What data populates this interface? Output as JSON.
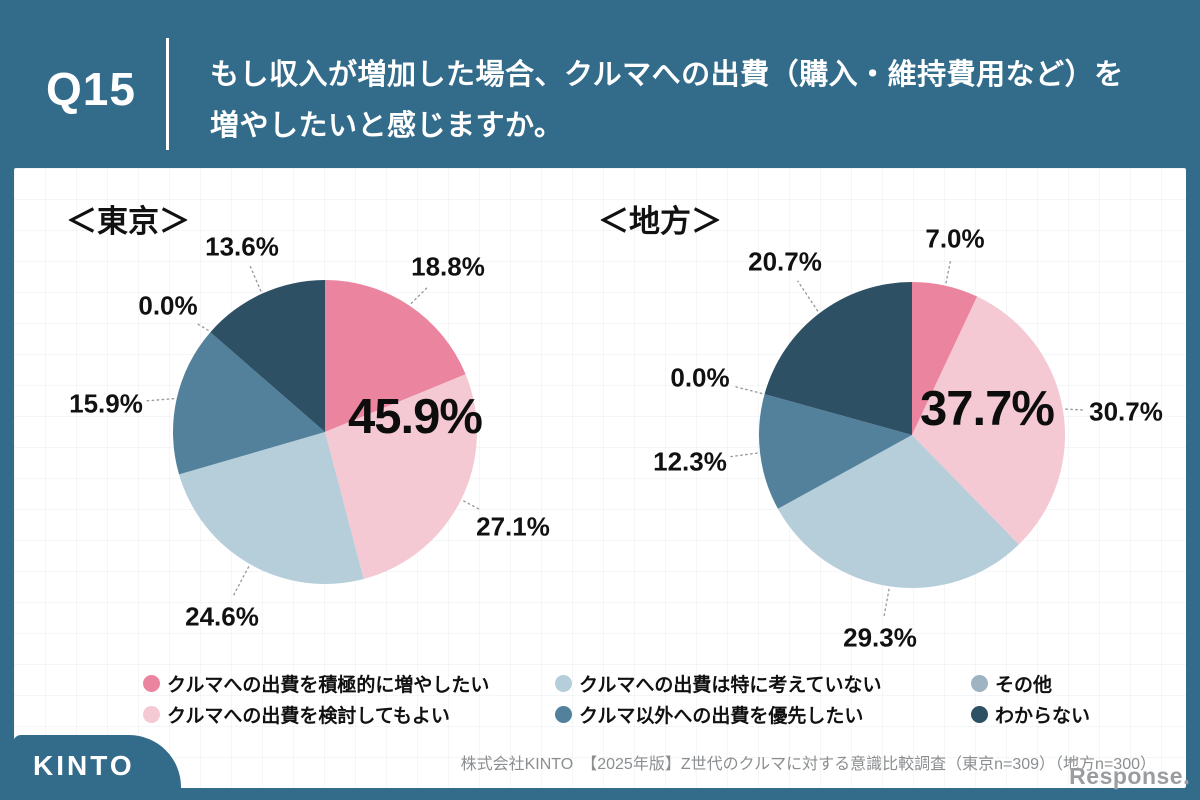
{
  "header": {
    "question_no": "Q15",
    "title_line1": "もし収入が増加した場合、クルマへの出費（購入・維持費用など）を",
    "title_line2": "増やしたいと感じますか。"
  },
  "legend": [
    {
      "label": "クルマへの出費を積極的に増やしたい",
      "color": "#EB849F"
    },
    {
      "label": "クルマへの出費を検討してもよい",
      "color": "#F4C9D3"
    },
    {
      "label": "クルマへの出費は特に考えていない",
      "color": "#B5CEDA"
    },
    {
      "label": "クルマ以外への出費を優先したい",
      "color": "#53819C"
    },
    {
      "label": "その他",
      "color": "#9FB4C2"
    },
    {
      "label": "わからない",
      "color": "#2E5065"
    }
  ],
  "chart_data": [
    {
      "type": "pie",
      "title": "＜東京＞",
      "categories": [
        "クルマへの出費を積極的に増やしたい",
        "クルマへの出費を検討してもよい",
        "クルマへの出費は特に考えていない",
        "クルマ以外への出費を優先したい",
        "その他",
        "わからない"
      ],
      "values": [
        18.8,
        27.1,
        24.6,
        15.9,
        0.0,
        13.6
      ],
      "highlight_total": 45.9,
      "start_angle_deg": 0,
      "direction": "clockwise",
      "labels_format": "percent",
      "legend_position": "bottom"
    },
    {
      "type": "pie",
      "title": "＜地方＞",
      "categories": [
        "クルマへの出費を積極的に増やしたい",
        "クルマへの出費を検討してもよい",
        "クルマへの出費は特に考えていない",
        "クルマ以外への出費を優先したい",
        "その他",
        "わからない"
      ],
      "values": [
        7.0,
        30.7,
        29.3,
        12.3,
        0.0,
        20.7
      ],
      "highlight_total": 37.7,
      "start_angle_deg": 0,
      "direction": "clockwise",
      "labels_format": "percent",
      "legend_position": "bottom"
    }
  ],
  "footer": {
    "brand": "KINTO",
    "source": "株式会社KINTO　【2025年版】Z世代のクルマに対する意識比較調査（東京n=309）（地方n=300）",
    "credit": "Response."
  }
}
